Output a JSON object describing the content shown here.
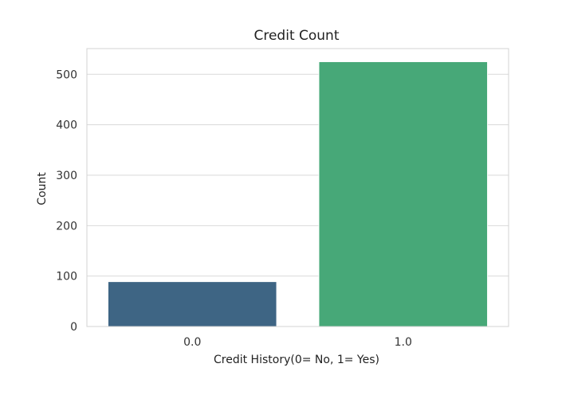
{
  "chart_data": {
    "type": "bar",
    "title": "Credit Count",
    "xlabel": "Credit History(0= No, 1= Yes)",
    "ylabel": "Count",
    "categories": [
      "0.0",
      "1.0"
    ],
    "values": [
      89,
      525
    ],
    "bar_colors": [
      "#3e6584",
      "#47a878"
    ],
    "ylim": [
      0,
      551
    ],
    "yticks": [
      0,
      100,
      200,
      300,
      400,
      500
    ],
    "ytick_labels": [
      "0",
      "100",
      "200",
      "300",
      "400",
      "500"
    ],
    "grid": "horizontal",
    "legend": "none"
  },
  "colors": {
    "grid": "#d9d9d9",
    "frame": "#d3d3d3",
    "background": "#ffffff"
  }
}
